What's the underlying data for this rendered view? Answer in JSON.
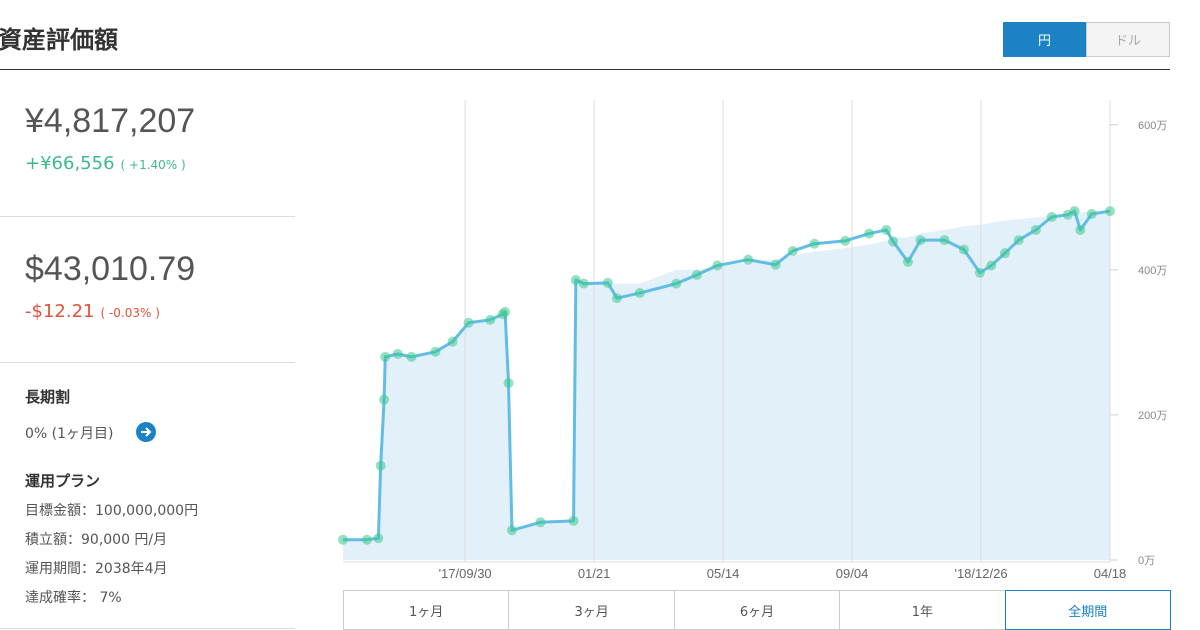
{
  "header": {
    "title": "資産評価額",
    "currency_toggle": [
      "円",
      "ドル"
    ]
  },
  "summary": {
    "jpy": {
      "value": "¥4,817,207",
      "change": "+¥66,556",
      "change_pct": "( +1.40% )"
    },
    "usd": {
      "value": "$43,010.79",
      "change": "-$12.21",
      "change_pct": "( -0.03% )"
    }
  },
  "discount": {
    "title": "長期割",
    "value": "0% (1ヶ月目)"
  },
  "plan": {
    "title": "運用プラン",
    "items": [
      "目標金額：100,000,000円",
      "積立額：90,000 円/月",
      "運用期間：2038年4月",
      "達成確率： 7%"
    ]
  },
  "chart_data": {
    "type": "line",
    "x": [
      "2017-06-15",
      "2017-07-06",
      "2017-07-16",
      "2017-07-18",
      "2017-07-21",
      "2017-07-22",
      "2017-08-02",
      "2017-08-14",
      "2017-09-04",
      "2017-09-19",
      "2017-10-03",
      "2017-10-22",
      "2017-11-02",
      "2017-11-04",
      "2017-11-07",
      "2017-11-10",
      "2017-12-05",
      "2018-01-03",
      "2018-01-05",
      "2018-01-12",
      "2018-02-02",
      "2018-02-10",
      "2018-03-02",
      "2018-04-03",
      "2018-04-21",
      "2018-05-09",
      "2018-06-05",
      "2018-06-29",
      "2018-07-14",
      "2018-08-02",
      "2018-08-29",
      "2018-09-19",
      "2018-10-04",
      "2018-10-10",
      "2018-10-23",
      "2018-11-03",
      "2018-11-24",
      "2018-12-11",
      "2018-12-25",
      "2019-01-04",
      "2019-01-16",
      "2019-01-28",
      "2019-02-12",
      "2019-02-26",
      "2019-03-12",
      "2019-03-18",
      "2019-03-23",
      "2019-04-02",
      "2019-04-18"
    ],
    "series": [
      {
        "kind": "area",
        "color": "#e2f0f9",
        "values": [
          28,
          28,
          30,
          130,
          221,
          280,
          284,
          280,
          287,
          301,
          327,
          331,
          339,
          342,
          244,
          41,
          52,
          54,
          386,
          381,
          381,
          381,
          381,
          400,
          400,
          405,
          410,
          415,
          420,
          425,
          430,
          435,
          440,
          445,
          445,
          450,
          455,
          460,
          462,
          465,
          468,
          470,
          472,
          475,
          477,
          478,
          479,
          480,
          481
        ]
      },
      {
        "kind": "line",
        "color": "#62bce6",
        "marker_color": "#3cc88c",
        "values": [
          28,
          28,
          30,
          130,
          221,
          280,
          284,
          280,
          287,
          301,
          327,
          331,
          339,
          342,
          244,
          41,
          52,
          54,
          386,
          381,
          382,
          361,
          368,
          381,
          393,
          406,
          414,
          407,
          426,
          436,
          440,
          450,
          455,
          439,
          411,
          441,
          441,
          428,
          396,
          406,
          423,
          441,
          455,
          473,
          476,
          481,
          455,
          477,
          481
        ]
      }
    ],
    "xlim": [
      "2017-06-15",
      "2019-04-18"
    ],
    "xticks": [
      {
        "value": "2017-09-30",
        "label": "'17/09/30"
      },
      {
        "value": "2018-01-21",
        "label": "01/21"
      },
      {
        "value": "2018-05-14",
        "label": "05/14"
      },
      {
        "value": "2018-09-04",
        "label": "09/04"
      },
      {
        "value": "2018-12-26",
        "label": "'18/12/26"
      },
      {
        "value": "2019-04-18",
        "label": "04/18"
      }
    ],
    "ylim": [
      0,
      630
    ],
    "yticks": [
      {
        "value": 0,
        "label": "0万"
      },
      {
        "value": 200,
        "label": "200万"
      },
      {
        "value": 400,
        "label": "400万"
      },
      {
        "value": 600,
        "label": "600万"
      }
    ],
    "grid": true
  },
  "periods": [
    "1ヶ月",
    "3ヶ月",
    "6ヶ月",
    "1年",
    "全期間"
  ]
}
